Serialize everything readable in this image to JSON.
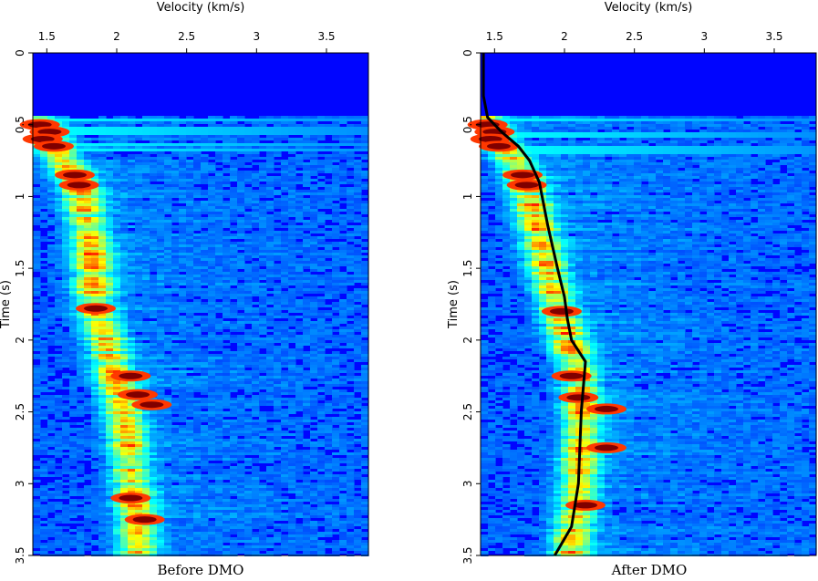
{
  "chart_data": [
    {
      "type": "heatmap",
      "caption": "Before DMO",
      "xlabel": "Velocity (km/s)",
      "ylabel": "Time (s)",
      "xlim": [
        1.4,
        3.8
      ],
      "ylim": [
        0,
        3.5
      ],
      "xticks": [
        "1.5",
        "2",
        "2.5",
        "3",
        "3.5"
      ],
      "yticks": [
        "0",
        "0.5",
        "1",
        "1.5",
        "2",
        "2.5",
        "3",
        "3.5"
      ],
      "colormap": "jet",
      "semblance_trend": [
        [
          0.45,
          1.43
        ],
        [
          0.55,
          1.47
        ],
        [
          0.65,
          1.55
        ],
        [
          0.8,
          1.65
        ],
        [
          0.9,
          1.72
        ],
        [
          1.0,
          1.75
        ],
        [
          1.2,
          1.79
        ],
        [
          1.4,
          1.82
        ],
        [
          1.6,
          1.83
        ],
        [
          1.8,
          1.85
        ],
        [
          2.0,
          1.92
        ],
        [
          2.2,
          1.97
        ],
        [
          2.4,
          2.02
        ],
        [
          2.5,
          2.05
        ],
        [
          2.7,
          2.08
        ],
        [
          2.9,
          2.1
        ],
        [
          3.1,
          2.12
        ],
        [
          3.3,
          2.14
        ],
        [
          3.45,
          2.15
        ]
      ],
      "strong_events": [
        [
          0.5,
          1.45
        ],
        [
          0.55,
          1.52
        ],
        [
          0.6,
          1.47
        ],
        [
          0.65,
          1.55
        ],
        [
          0.85,
          1.7
        ],
        [
          0.92,
          1.73
        ],
        [
          1.78,
          1.85
        ],
        [
          2.25,
          2.1
        ],
        [
          2.38,
          2.15
        ],
        [
          2.45,
          2.25
        ],
        [
          3.1,
          2.1
        ],
        [
          3.25,
          2.2
        ]
      ]
    },
    {
      "type": "heatmap",
      "caption": "After DMO",
      "xlabel": "Velocity (km/s)",
      "ylabel": "Time (s)",
      "xlim": [
        1.4,
        3.8
      ],
      "ylim": [
        0,
        3.5
      ],
      "xticks": [
        "1.5",
        "2",
        "2.5",
        "3",
        "3.5"
      ],
      "yticks": [
        "0",
        "0.5",
        "1",
        "1.5",
        "2",
        "2.5",
        "3",
        "3.5"
      ],
      "colormap": "jet",
      "semblance_trend": [
        [
          0.45,
          1.42
        ],
        [
          0.55,
          1.48
        ],
        [
          0.65,
          1.57
        ],
        [
          0.8,
          1.67
        ],
        [
          0.9,
          1.72
        ],
        [
          1.0,
          1.75
        ],
        [
          1.2,
          1.8
        ],
        [
          1.4,
          1.85
        ],
        [
          1.6,
          1.9
        ],
        [
          1.8,
          1.96
        ],
        [
          2.0,
          2.02
        ],
        [
          2.2,
          2.1
        ],
        [
          2.4,
          2.12
        ],
        [
          2.6,
          2.12
        ],
        [
          2.8,
          2.11
        ],
        [
          3.0,
          2.1
        ],
        [
          3.2,
          2.08
        ],
        [
          3.4,
          2.05
        ]
      ],
      "strong_events": [
        [
          0.5,
          1.45
        ],
        [
          0.55,
          1.5
        ],
        [
          0.6,
          1.47
        ],
        [
          0.65,
          1.53
        ],
        [
          0.85,
          1.7
        ],
        [
          0.92,
          1.73
        ],
        [
          1.8,
          1.98
        ],
        [
          2.25,
          2.05
        ],
        [
          2.4,
          2.1
        ],
        [
          2.48,
          2.3
        ],
        [
          2.75,
          2.3
        ],
        [
          3.15,
          2.15
        ]
      ],
      "picked_velocity": {
        "t": [
          0.0,
          0.3,
          0.45,
          0.55,
          0.65,
          0.75,
          0.9,
          1.2,
          1.5,
          1.7,
          1.85,
          2.0,
          2.15,
          2.5,
          3.0,
          3.3,
          3.5
        ],
        "v": [
          1.42,
          1.42,
          1.45,
          1.55,
          1.67,
          1.75,
          1.82,
          1.88,
          1.95,
          2.0,
          2.02,
          2.05,
          2.15,
          2.12,
          2.1,
          2.05,
          1.93
        ]
      }
    }
  ]
}
